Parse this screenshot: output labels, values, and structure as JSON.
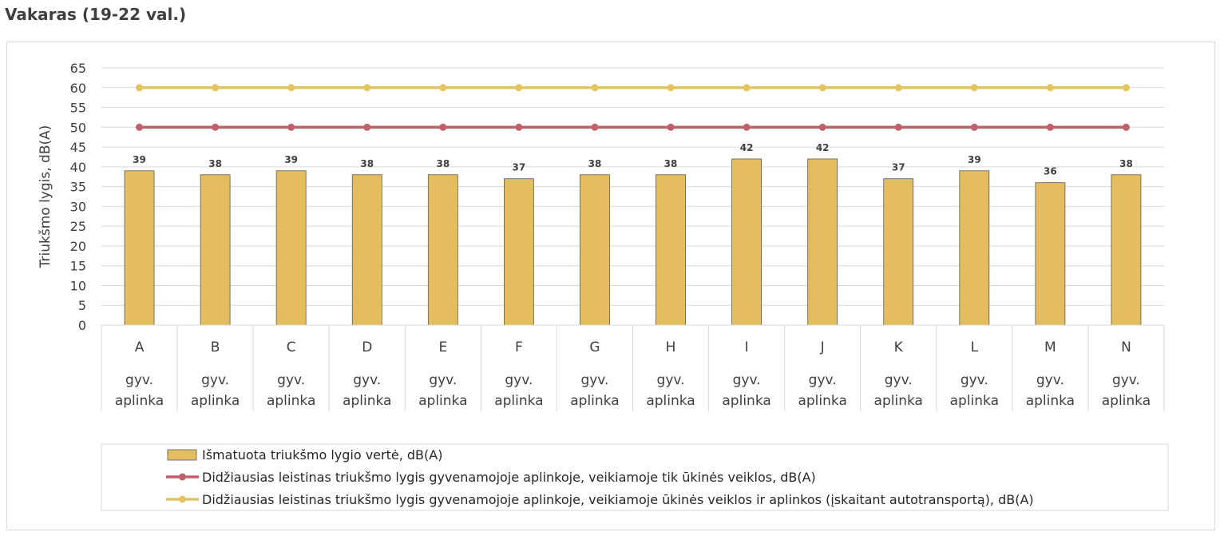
{
  "page": {
    "title": "Vakaras (19-22 val.)"
  },
  "chart_data": {
    "type": "bar",
    "title": "Vakaras (19-22 val.)",
    "ylabel": "Triukšmo lygis, dB(A)",
    "xlabel": "",
    "ylim": [
      0,
      65
    ],
    "ytick_step": 5,
    "grid": true,
    "categories": [
      "A",
      "B",
      "C",
      "D",
      "E",
      "F",
      "G",
      "H",
      "I",
      "J",
      "K",
      "L",
      "M",
      "N"
    ],
    "category_sublabel": [
      "gyv.",
      "aplinka"
    ],
    "series": [
      {
        "name": "Išmatuota triukšmo lygio vertė, dB(A)",
        "kind": "bar",
        "color": "#e4be5e",
        "values": [
          39,
          38,
          39,
          38,
          38,
          37,
          38,
          38,
          42,
          42,
          37,
          39,
          36,
          38
        ],
        "data_labels": true
      },
      {
        "name": "Didžiausias leistinas triukšmo lygis gyvenamojoje aplinkoje, veikiamoje tik ūkinės veiklos,  dB(A)",
        "kind": "line",
        "color": "#c0606a",
        "values": [
          50,
          50,
          50,
          50,
          50,
          50,
          50,
          50,
          50,
          50,
          50,
          50,
          50,
          50
        ]
      },
      {
        "name": "Didžiausias leistinas triukšmo lygis gyvenamojoje aplinkoje, veikiamoje ūkinės veiklos ir aplinkos (įskaitant autotransportą),  dB(A)",
        "kind": "line",
        "color": "#e4c45e",
        "values": [
          60,
          60,
          60,
          60,
          60,
          60,
          60,
          60,
          60,
          60,
          60,
          60,
          60,
          60
        ]
      }
    ],
    "legend_position": "bottom"
  }
}
